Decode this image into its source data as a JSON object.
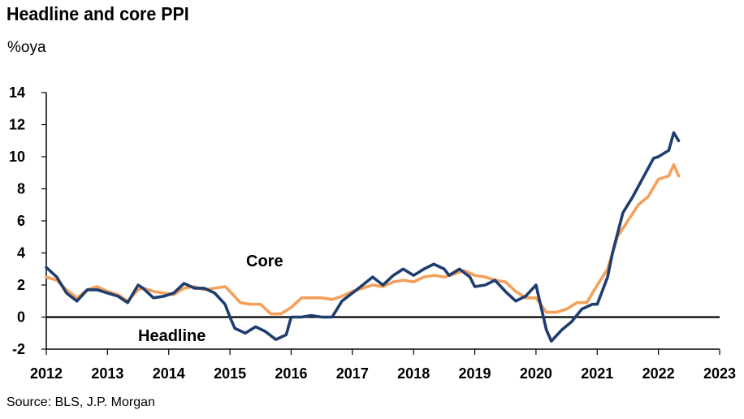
{
  "title": "Headline and core PPI",
  "subtitle": "%oya",
  "source": "Source: BLS, J.P. Morgan",
  "chart_data": {
    "type": "line",
    "title": "Headline and core PPI",
    "ylabel": "%oya",
    "xlim": [
      2012,
      2023
    ],
    "ylim": [
      -2,
      14
    ],
    "x_ticks": [
      2012,
      2013,
      2014,
      2015,
      2016,
      2017,
      2018,
      2019,
      2020,
      2021,
      2022,
      2023
    ],
    "y_ticks": [
      -2,
      0,
      2,
      4,
      6,
      8,
      10,
      12,
      14
    ],
    "grid": false,
    "annotations": [
      {
        "text": "Core",
        "series": "Core"
      },
      {
        "text": "Headline",
        "series": "Headline"
      }
    ],
    "series": [
      {
        "name": "Headline",
        "color": "#1f3d6e",
        "x": [
          2012.0,
          2012.17,
          2012.33,
          2012.5,
          2012.67,
          2012.83,
          2013.0,
          2013.17,
          2013.33,
          2013.5,
          2013.58,
          2013.75,
          2013.92,
          2014.08,
          2014.25,
          2014.42,
          2014.58,
          2014.75,
          2014.92,
          2015.0,
          2015.08,
          2015.25,
          2015.42,
          2015.58,
          2015.75,
          2015.92,
          2016.0,
          2016.17,
          2016.33,
          2016.5,
          2016.67,
          2016.83,
          2017.0,
          2017.17,
          2017.33,
          2017.5,
          2017.67,
          2017.83,
          2018.0,
          2018.17,
          2018.33,
          2018.5,
          2018.58,
          2018.75,
          2018.92,
          2019.0,
          2019.17,
          2019.33,
          2019.5,
          2019.67,
          2019.83,
          2020.0,
          2020.17,
          2020.25,
          2020.42,
          2020.58,
          2020.75,
          2020.92,
          2021.0,
          2021.17,
          2021.25,
          2021.42,
          2021.58,
          2021.75,
          2021.92,
          2022.0,
          2022.17,
          2022.25,
          2022.33
        ],
        "values": [
          3.1,
          2.5,
          1.5,
          1.0,
          1.7,
          1.7,
          1.5,
          1.3,
          0.9,
          2.0,
          1.8,
          1.2,
          1.3,
          1.5,
          2.1,
          1.8,
          1.8,
          1.5,
          0.8,
          0.0,
          -0.7,
          -1.0,
          -0.6,
          -0.9,
          -1.4,
          -1.1,
          0.0,
          0.0,
          0.1,
          0.0,
          0.0,
          1.0,
          1.5,
          2.0,
          2.5,
          2.0,
          2.6,
          3.0,
          2.6,
          3.0,
          3.3,
          3.0,
          2.6,
          3.0,
          2.5,
          1.9,
          2.0,
          2.3,
          1.6,
          1.0,
          1.3,
          2.0,
          -0.8,
          -1.5,
          -0.8,
          -0.3,
          0.5,
          0.8,
          0.8,
          2.5,
          4.0,
          6.5,
          7.5,
          8.7,
          9.9,
          10.0,
          10.4,
          11.5,
          11.0
        ]
      },
      {
        "name": "Core",
        "color": "#f4a05a",
        "x": [
          2012.0,
          2012.17,
          2012.33,
          2012.5,
          2012.67,
          2012.83,
          2013.0,
          2013.17,
          2013.33,
          2013.5,
          2013.58,
          2013.75,
          2013.92,
          2014.08,
          2014.25,
          2014.42,
          2014.58,
          2014.75,
          2014.92,
          2015.0,
          2015.17,
          2015.33,
          2015.5,
          2015.67,
          2015.83,
          2016.0,
          2016.17,
          2016.33,
          2016.5,
          2016.67,
          2016.83,
          2017.0,
          2017.17,
          2017.33,
          2017.5,
          2017.67,
          2017.83,
          2018.0,
          2018.17,
          2018.33,
          2018.5,
          2018.67,
          2018.83,
          2019.0,
          2019.17,
          2019.33,
          2019.5,
          2019.67,
          2019.83,
          2020.0,
          2020.17,
          2020.33,
          2020.5,
          2020.67,
          2020.83,
          2021.0,
          2021.17,
          2021.33,
          2021.5,
          2021.67,
          2021.83,
          2022.0,
          2022.17,
          2022.25,
          2022.33
        ],
        "values": [
          2.5,
          2.3,
          1.7,
          1.2,
          1.7,
          1.9,
          1.6,
          1.4,
          1.0,
          1.7,
          1.8,
          1.6,
          1.5,
          1.4,
          1.8,
          1.9,
          1.7,
          1.8,
          1.9,
          1.6,
          0.9,
          0.8,
          0.8,
          0.2,
          0.2,
          0.6,
          1.2,
          1.2,
          1.2,
          1.1,
          1.3,
          1.6,
          1.8,
          2.0,
          1.9,
          2.2,
          2.3,
          2.2,
          2.5,
          2.6,
          2.5,
          2.7,
          2.9,
          2.6,
          2.5,
          2.3,
          2.2,
          1.6,
          1.2,
          1.2,
          0.3,
          0.3,
          0.5,
          0.9,
          0.9,
          2.0,
          3.0,
          5.0,
          6.0,
          7.0,
          7.5,
          8.6,
          8.8,
          9.5,
          8.8
        ]
      }
    ]
  }
}
